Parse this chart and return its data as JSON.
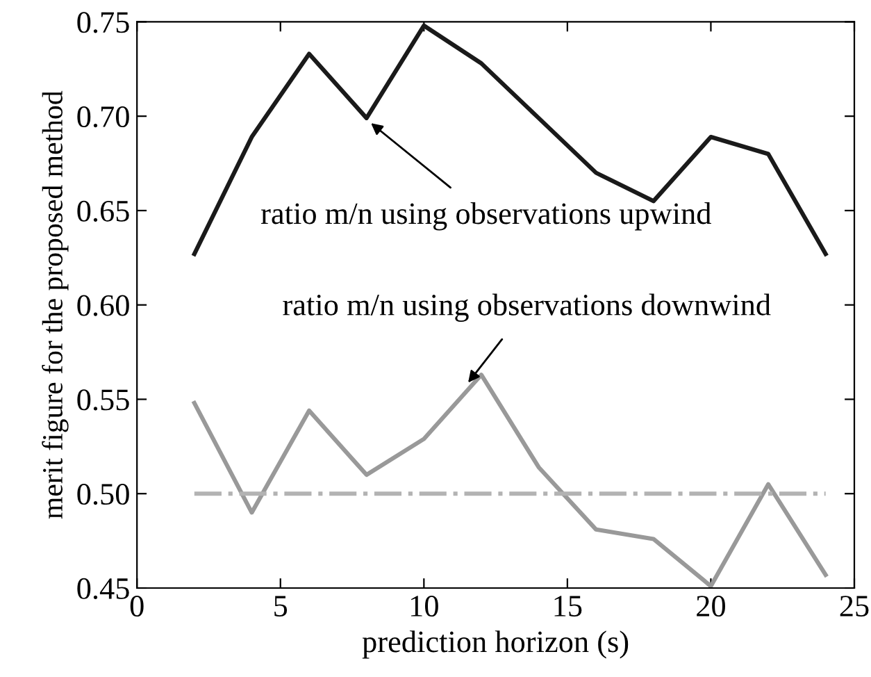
{
  "chart_data": {
    "type": "line",
    "xlabel": "prediction horizon (s)",
    "ylabel": "merit figure for the proposed method",
    "xlim": [
      0,
      25
    ],
    "xticks": [
      0,
      5,
      10,
      15,
      20,
      25
    ],
    "ylim": [
      0.45,
      0.75
    ],
    "yticks": [
      0.45,
      {
        "value": 0.5,
        "label": "0.50"
      },
      0.55,
      {
        "value": 0.6,
        "label": "0.60"
      },
      0.65,
      {
        "value": 0.7,
        "label": "0.70"
      },
      0.75
    ],
    "x": [
      2,
      4,
      6,
      8,
      10,
      12,
      14,
      16,
      18,
      20,
      22,
      24
    ],
    "series": [
      {
        "color": "#1a1a1a",
        "values": [
          0.627,
          0.689,
          0.733,
          0.699,
          0.748,
          0.728,
          0.699,
          0.67,
          0.655,
          0.689,
          0.68,
          0.627
        ]
      },
      {
        "color": "#999999",
        "values": [
          0.548,
          0.49,
          0.544,
          0.51,
          0.529,
          0.563,
          0.514,
          0.481,
          0.476,
          0.451,
          0.505,
          0.457
        ]
      },
      {
        "color": "#b3b3b3",
        "x": [
          2,
          24
        ],
        "values": [
          0.5,
          0.5
        ],
        "line_style": "dashdot"
      }
    ],
    "annotations": [
      {
        "text": "ratio m/n using observations upwind",
        "x": 8.1,
        "y": 0.697
      },
      {
        "text": "ratio m/n using observations downwind",
        "x": 11.5,
        "y": 0.558
      }
    ],
    "grid": false,
    "legend": false
  }
}
